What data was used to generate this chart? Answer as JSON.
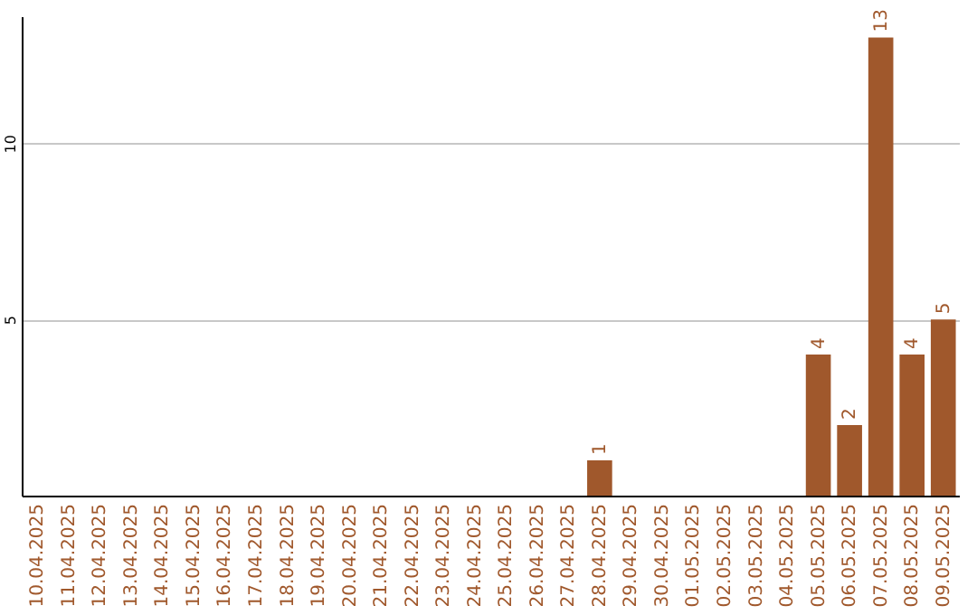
{
  "chart_data": {
    "type": "bar",
    "categories": [
      "10.04.2025",
      "11.04.2025",
      "12.04.2025",
      "13.04.2025",
      "14.04.2025",
      "15.04.2025",
      "16.04.2025",
      "17.04.2025",
      "18.04.2025",
      "19.04.2025",
      "20.04.2025",
      "21.04.2025",
      "22.04.2025",
      "23.04.2025",
      "24.04.2025",
      "25.04.2025",
      "26.04.2025",
      "27.04.2025",
      "28.04.2025",
      "29.04.2025",
      "30.04.2025",
      "01.05.2025",
      "02.05.2025",
      "03.05.2025",
      "04.05.2025",
      "05.05.2025",
      "06.05.2025",
      "07.05.2025",
      "08.05.2025",
      "09.05.2025"
    ],
    "values": [
      0,
      0,
      0,
      0,
      0,
      0,
      0,
      0,
      0,
      0,
      0,
      0,
      0,
      0,
      0,
      0,
      0,
      0,
      1,
      0,
      0,
      0,
      0,
      0,
      0,
      4,
      2,
      13,
      4,
      5
    ],
    "value_labels": [
      null,
      null,
      null,
      null,
      null,
      null,
      null,
      null,
      null,
      null,
      null,
      null,
      null,
      null,
      null,
      null,
      null,
      null,
      "1",
      null,
      null,
      null,
      null,
      null,
      null,
      "4",
      "2",
      "13",
      "4",
      "5"
    ],
    "color": "#a0582c",
    "ylim": [
      0,
      13.6
    ],
    "yticks": [
      5,
      10
    ],
    "grid": "y"
  }
}
